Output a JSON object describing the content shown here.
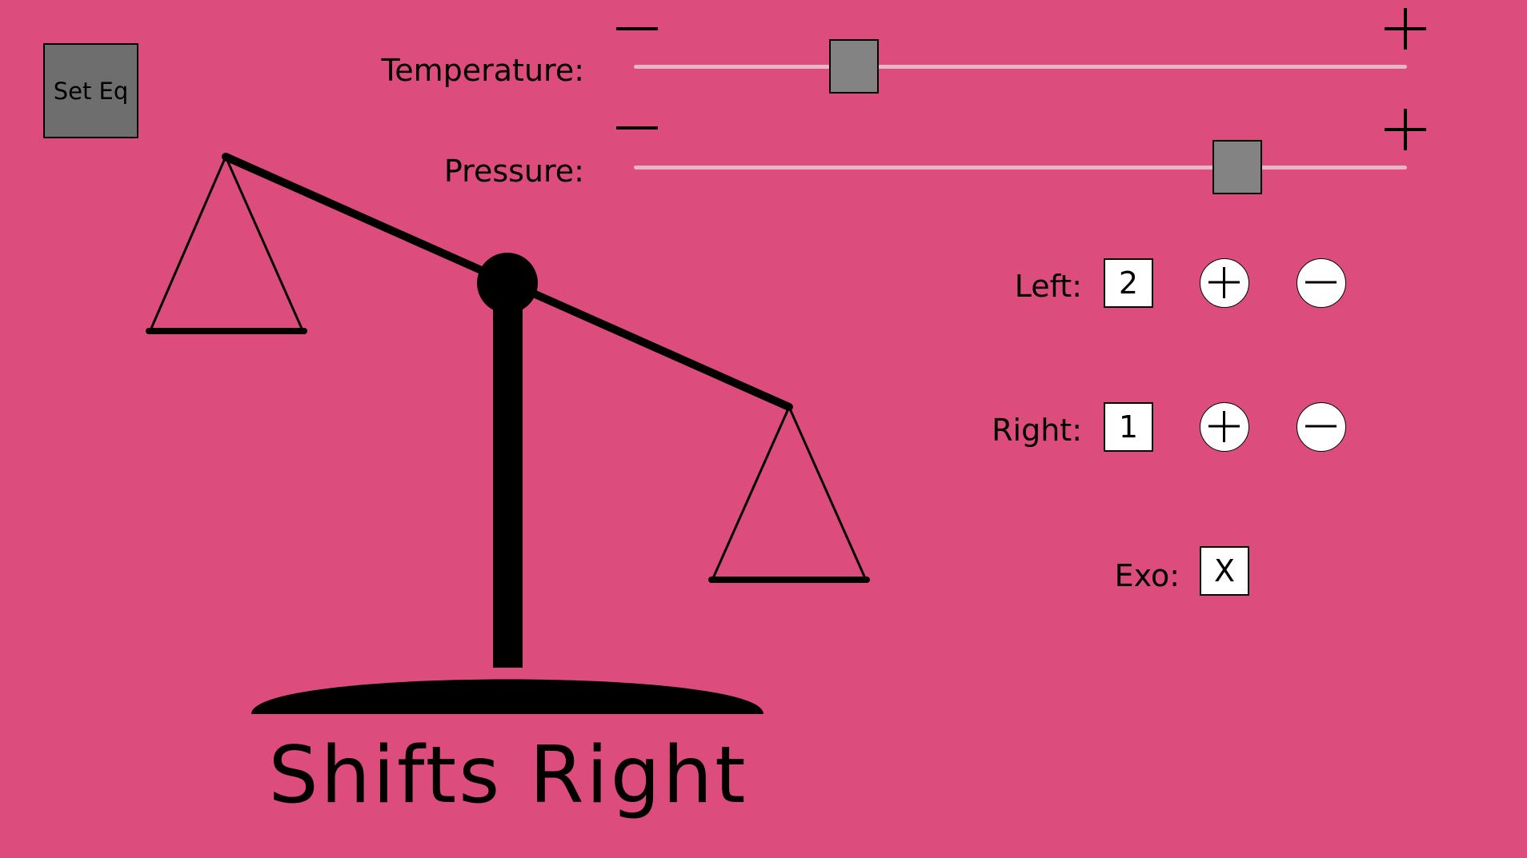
{
  "set_eq_button": {
    "label": "Set Eq"
  },
  "temperature": {
    "label": "Temperature:",
    "minus": "minus-icon",
    "plus": "plus-icon",
    "level": 0.27
  },
  "pressure": {
    "label": "Pressure:",
    "minus": "minus-icon",
    "plus": "plus-icon",
    "level": 0.8
  },
  "left": {
    "label": "Left:",
    "value": "2"
  },
  "right": {
    "label": "Right:",
    "value": "1"
  },
  "exo": {
    "label": "Exo:",
    "value": "X"
  },
  "status": {
    "text": "Shifts Right"
  },
  "colors": {
    "background": "#dc4d7d",
    "thumb": "#838383",
    "track": "#e9b6c7",
    "button": "#6e6e6e"
  }
}
